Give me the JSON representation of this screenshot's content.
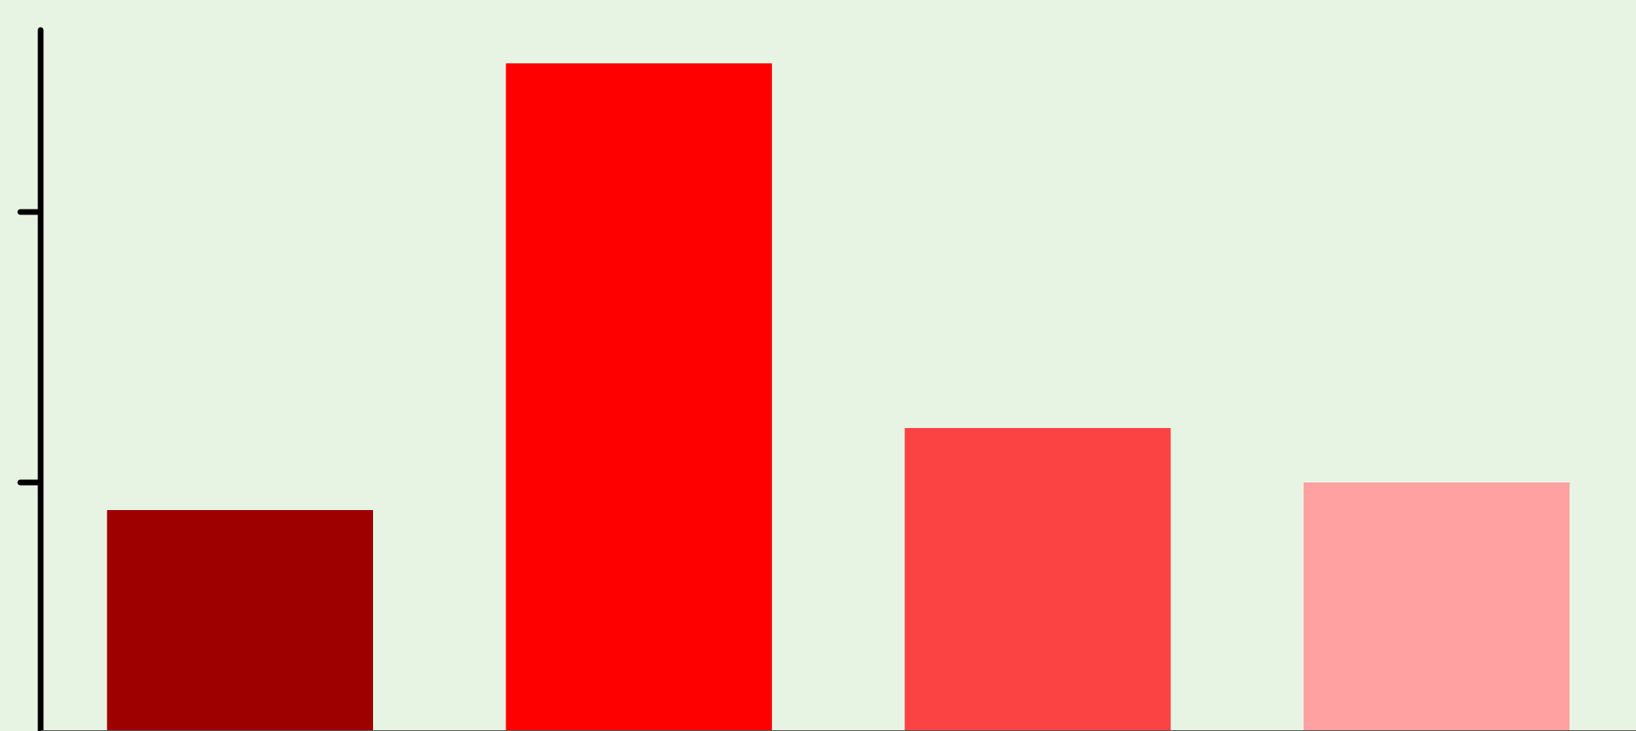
{
  "chart_data": {
    "type": "bar",
    "categories": [
      "",
      "",
      "",
      ""
    ],
    "values": [
      272,
      822,
      373,
      306
    ],
    "colors": [
      "#9e0000",
      "#ff0000",
      "#fc4343",
      "#ffa1a1"
    ],
    "background": "#e8f4e3",
    "axis_color": "#000000",
    "ylim": [
      0,
      865
    ],
    "yticks": [
      306,
      639
    ],
    "grid": false,
    "legend": "none",
    "title": "",
    "xlabel": "",
    "ylabel": ""
  }
}
